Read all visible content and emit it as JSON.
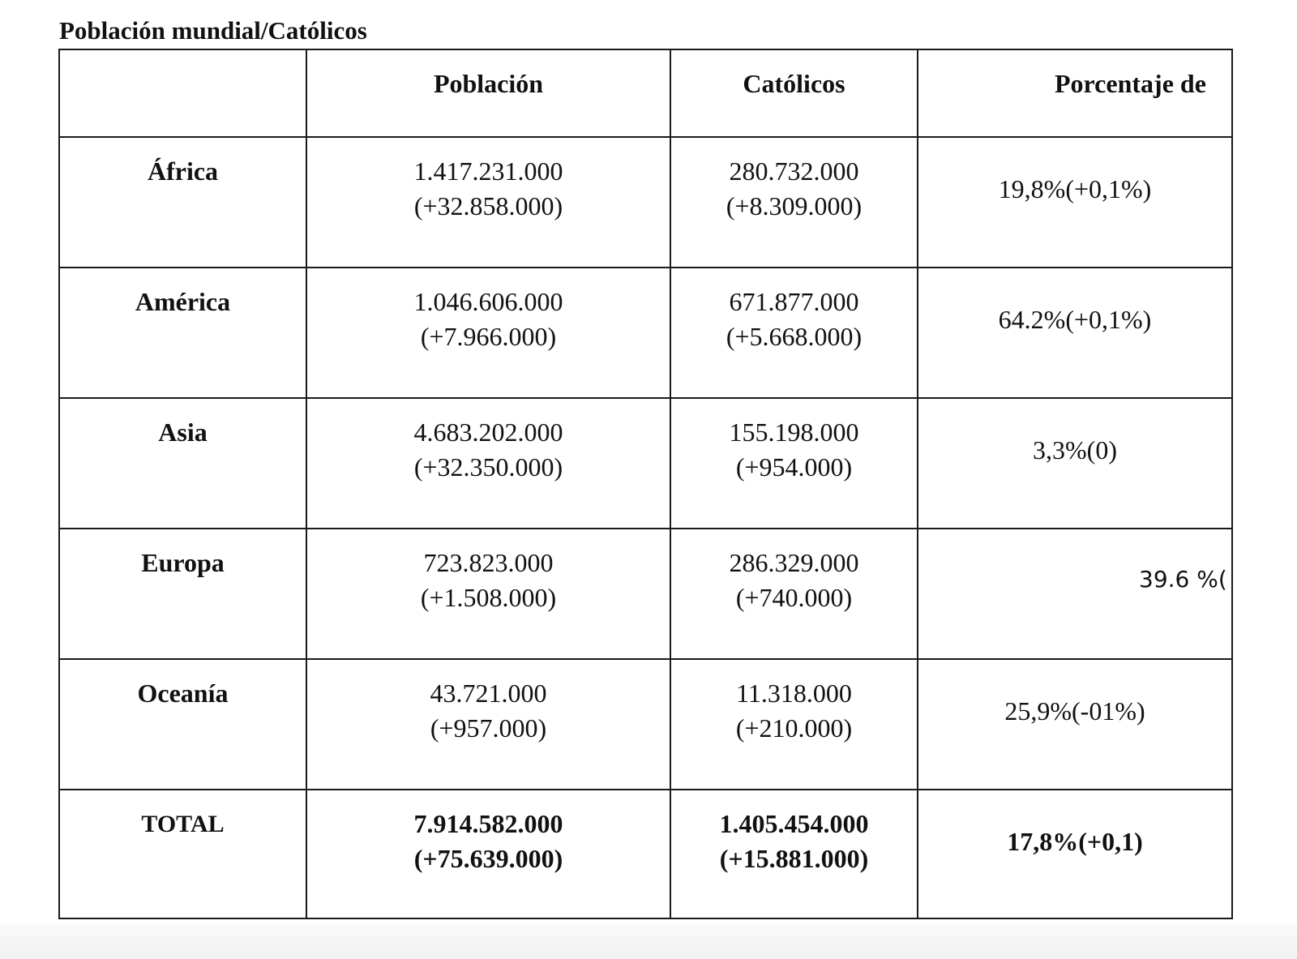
{
  "title": "Población mundial/Católicos",
  "headers": [
    "",
    "Población",
    "Católicos",
    "Porcentaje de"
  ],
  "rows": [
    {
      "region": "África",
      "poblacion": "1.417.231.000",
      "poblacion_delta": "(+32.858.000)",
      "catolicos": "280.732.000",
      "catolicos_delta": "(+8.309.000)",
      "porcentaje": "19,8%(+0,1%)"
    },
    {
      "region": "América",
      "poblacion": "1.046.606.000",
      "poblacion_delta": "(+7.966.000)",
      "catolicos": "671.877.000",
      "catolicos_delta": "(+5.668.000)",
      "porcentaje": "64.2%(+0,1%)"
    },
    {
      "region": "Asia",
      "poblacion": "4.683.202.000",
      "poblacion_delta": "(+32.350.000)",
      "catolicos": "155.198.000",
      "catolicos_delta": "(+954.000)",
      "porcentaje": "3,3%(0)"
    },
    {
      "region": "Europa",
      "poblacion": "723.823.000",
      "poblacion_delta": "(+1.508.000)",
      "catolicos": "286.329.000",
      "catolicos_delta": "(+740.000)",
      "porcentaje": "39.6 %("
    },
    {
      "region": "Oceanía",
      "poblacion": "43.721.000",
      "poblacion_delta": "(+957.000)",
      "catolicos": "11.318.000",
      "catolicos_delta": "(+210.000)",
      "porcentaje": "25,9%(-01%)"
    }
  ],
  "total": {
    "region": "TOTAL",
    "poblacion": "7.914.582.000",
    "poblacion_delta": "(+75.639.000)",
    "catolicos": "1.405.454.000",
    "catolicos_delta": "(+15.881.000)",
    "porcentaje": "17,8%(+0,1)"
  }
}
